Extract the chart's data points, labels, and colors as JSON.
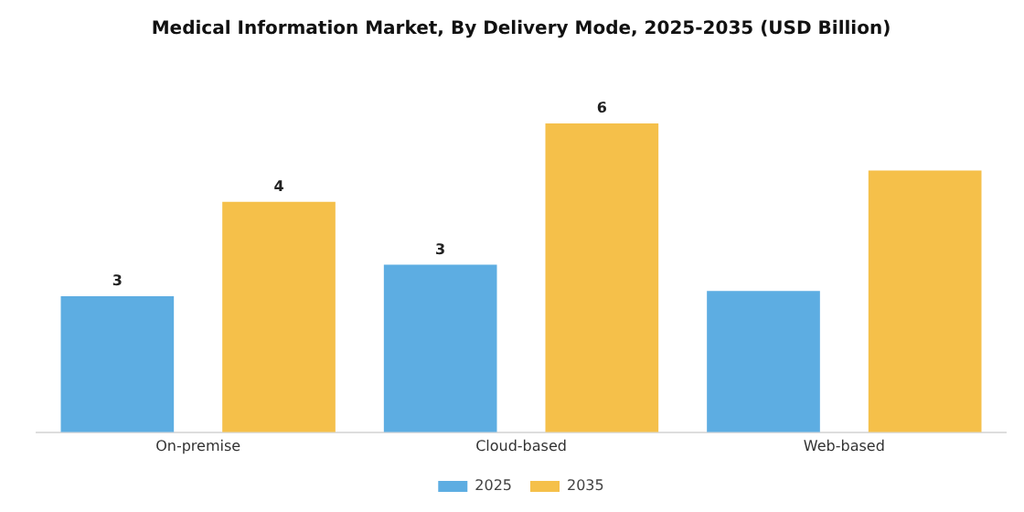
{
  "chart_data": {
    "type": "bar",
    "title": "Medical Information Market, By Delivery Mode, 2025-2035 (USD Billion)",
    "tick_labels": "x",
    "categories": [
      "On-premise",
      "Cloud-based",
      "Web-based"
    ],
    "series": [
      {
        "name": "2025",
        "color": "#5dade2",
        "values": [
          2.6,
          3.2,
          2.7
        ],
        "value_labels": [
          "3",
          "3",
          null
        ]
      },
      {
        "name": "2035",
        "color": "#f5c04a",
        "values": [
          4.4,
          5.9,
          5.0
        ],
        "value_labels": [
          "4",
          "6",
          null
        ]
      }
    ],
    "legend": "bottom",
    "grid": false
  }
}
